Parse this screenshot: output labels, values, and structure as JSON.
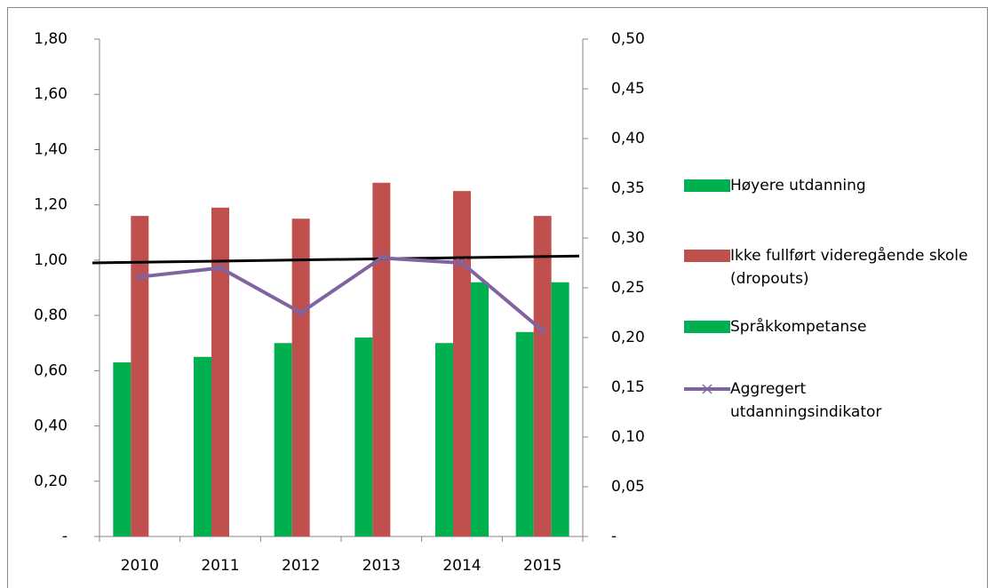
{
  "chart_data": {
    "type": "bar",
    "categories": [
      "2010",
      "2011",
      "2012",
      "2013",
      "2014",
      "2015"
    ],
    "series": [
      {
        "name": "Høyere utdanning",
        "color": "#00b050",
        "values": [
          0.63,
          0.65,
          0.7,
          0.72,
          0.7,
          0.74
        ]
      },
      {
        "name": "Ikke fullført videregående skole (dropouts)",
        "color": "#c0504d",
        "values": [
          1.16,
          1.19,
          1.15,
          1.28,
          1.25,
          1.16
        ]
      },
      {
        "name": "Språkkompetanse",
        "color": "#00b050",
        "values": [
          null,
          null,
          null,
          null,
          0.92,
          0.92
        ]
      },
      {
        "name": "Aggregert utdanningsindikator",
        "color": "#8064a2",
        "type": "line",
        "axis": "y2",
        "values": [
          0.261,
          0.27,
          0.225,
          0.28,
          0.275,
          0.207
        ]
      }
    ],
    "trendline": {
      "color": "#000000",
      "values": [
        0.99,
        1.015
      ]
    },
    "ylim": [
      0,
      1.8
    ],
    "yticks": [
      {
        "value": 0,
        "label": "-"
      },
      {
        "value": 0.2,
        "label": "0,20"
      },
      {
        "value": 0.4,
        "label": "0,40"
      },
      {
        "value": 0.6,
        "label": "0,60"
      },
      {
        "value": 0.8,
        "label": "0,80"
      },
      {
        "value": 1.0,
        "label": "1,00"
      },
      {
        "value": 1.2,
        "label": "1,20"
      },
      {
        "value": 1.4,
        "label": "1,40"
      },
      {
        "value": 1.6,
        "label": "1,60"
      },
      {
        "value": 1.8,
        "label": "1,80"
      }
    ],
    "y2lim": [
      0,
      0.5
    ],
    "y2ticks": [
      {
        "value": 0,
        "label": "-"
      },
      {
        "value": 0.05,
        "label": "0,05"
      },
      {
        "value": 0.1,
        "label": "0,10"
      },
      {
        "value": 0.15,
        "label": "0,15"
      },
      {
        "value": 0.2,
        "label": "0,20"
      },
      {
        "value": 0.25,
        "label": "0,25"
      },
      {
        "value": 0.3,
        "label": "0,30"
      },
      {
        "value": 0.35,
        "label": "0,35"
      },
      {
        "value": 0.4,
        "label": "0,40"
      },
      {
        "value": 0.45,
        "label": "0,45"
      },
      {
        "value": 0.5,
        "label": "0,50"
      }
    ],
    "legend": "right",
    "grid": false
  }
}
